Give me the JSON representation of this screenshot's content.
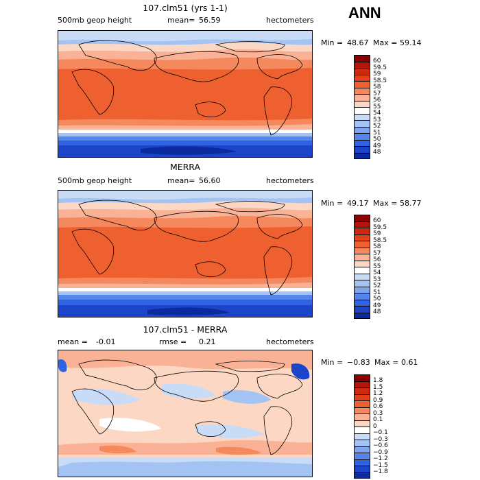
{
  "season": "ANN",
  "units": "hectometers",
  "panels": [
    {
      "title": "107.clm51 (yrs 1-1)",
      "left_label": "500mb geop height",
      "mean_label": "mean=",
      "mean_value": "56.59",
      "min_label": "Min =",
      "min_value": "48.67",
      "max_label": "Max =",
      "max_value": "59.14"
    },
    {
      "title": "MERRA",
      "left_label": "500mb geop height",
      "mean_label": "mean=",
      "mean_value": "56.60",
      "min_label": "Min =",
      "min_value": "49.17",
      "max_label": "Max =",
      "max_value": "58.77"
    },
    {
      "title": "107.clm51 - MERRA",
      "left_label": "mean =",
      "left_value": "-0.01",
      "mean_label": "rmse =",
      "mean_value": "0.21",
      "min_label": "Min =",
      "min_value": "−0.83",
      "max_label": "Max =",
      "max_value": "0.61"
    }
  ],
  "colorbar_abs": {
    "ticks": [
      "60",
      "59.5",
      "59",
      "58.5",
      "58",
      "57",
      "56",
      "55",
      "54",
      "53",
      "52",
      "51",
      "50",
      "49",
      "48"
    ],
    "colors": [
      "#8b0000",
      "#b3140c",
      "#cf2a10",
      "#e3401a",
      "#ef6030",
      "#f6885e",
      "#fab296",
      "#fcd7c4",
      "#ffffff",
      "#c8dcf7",
      "#a3c3f3",
      "#7ea6ee",
      "#5585ea",
      "#2f63e2",
      "#1b44c8",
      "#0a2a9e"
    ]
  },
  "colorbar_diff": {
    "ticks": [
      "1.8",
      "1.5",
      "1.2",
      "0.9",
      "0.6",
      "0.3",
      "0.1",
      "0",
      "−0.1",
      "−0.3",
      "−0.6",
      "−0.9",
      "−1.2",
      "−1.5",
      "−1.8"
    ],
    "colors": [
      "#8b0000",
      "#b3140c",
      "#cf2a10",
      "#e3401a",
      "#ef6030",
      "#f6885e",
      "#fab296",
      "#fcd7c4",
      "#ffffff",
      "#c8dcf7",
      "#a3c3f3",
      "#7ea6ee",
      "#5585ea",
      "#2f63e2",
      "#1b44c8",
      "#0a2a9e"
    ]
  },
  "chart_data": [
    {
      "type": "heatmap",
      "title": "107.clm51 (yrs 1-1)",
      "subtitle": "500mb geop height",
      "units": "hectometers",
      "mean": 56.59,
      "min": 48.67,
      "max": 59.14,
      "contour_levels": [
        48,
        49,
        50,
        51,
        52,
        53,
        54,
        55,
        56,
        57,
        58,
        58.5,
        59,
        59.5,
        60
      ]
    },
    {
      "type": "heatmap",
      "title": "MERRA",
      "subtitle": "500mb geop height",
      "units": "hectometers",
      "mean": 56.6,
      "min": 49.17,
      "max": 58.77,
      "contour_levels": [
        48,
        49,
        50,
        51,
        52,
        53,
        54,
        55,
        56,
        57,
        58,
        58.5,
        59,
        59.5,
        60
      ]
    },
    {
      "type": "heatmap",
      "title": "107.clm51 - MERRA",
      "units": "hectometers",
      "mean": -0.01,
      "rmse": 0.21,
      "min": -0.83,
      "max": 0.61,
      "contour_levels": [
        -1.8,
        -1.5,
        -1.2,
        -0.9,
        -0.6,
        -0.3,
        -0.1,
        0,
        0.1,
        0.3,
        0.6,
        0.9,
        1.2,
        1.5,
        1.8
      ]
    }
  ]
}
